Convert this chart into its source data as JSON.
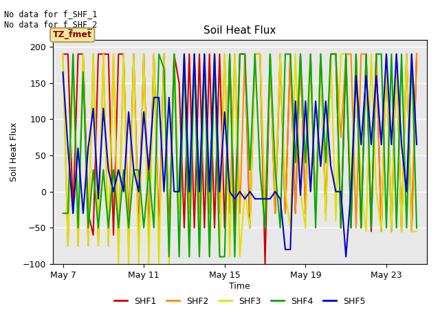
{
  "title": "Soil Heat Flux",
  "ylabel": "Soil Heat Flux",
  "xlabel": "Time",
  "ylim": [
    -100,
    210
  ],
  "annotation_text": "No data for f_SHF_1\nNo data for f_SHF_2",
  "legend_box_text": "TZ_fmet",
  "legend_box_color": "#f5e6a0",
  "legend_box_edge": "#b0a060",
  "bg_color": "#e8e8e8",
  "grid_color": "white",
  "xlim": [
    6.5,
    25.0
  ],
  "xtick_positions": [
    7,
    11,
    15,
    19,
    23
  ],
  "xtick_labels": [
    "May 7",
    "May 11",
    "May 15",
    "May 19",
    "May 23"
  ],
  "ytick_positions": [
    -100,
    -50,
    0,
    50,
    100,
    150,
    200
  ],
  "series_order": [
    "SHF1",
    "SHF2",
    "SHF3",
    "SHF4",
    "SHF5"
  ],
  "series": {
    "SHF1": {
      "color": "#cc0000",
      "x": [
        7.0,
        7.25,
        7.5,
        7.75,
        8.0,
        8.25,
        8.5,
        8.75,
        9.0,
        9.25,
        9.5,
        9.75,
        10.0,
        10.25,
        10.5,
        10.75,
        11.0,
        11.25,
        11.5,
        11.75,
        12.0,
        12.25,
        12.5,
        12.75,
        13.0,
        13.25,
        13.5,
        13.75,
        14.0,
        14.25,
        14.5,
        14.75,
        15.0,
        15.25,
        15.5,
        15.75,
        16.0,
        16.25,
        16.5,
        16.75,
        17.0,
        17.25,
        17.5,
        17.75,
        18.0,
        18.25,
        18.5,
        18.75,
        19.0,
        19.25,
        19.5,
        19.75,
        20.0,
        20.25,
        20.5,
        20.75,
        21.0,
        21.25,
        21.5,
        21.75,
        22.0,
        22.25,
        22.5,
        22.75,
        23.0,
        23.25,
        23.5,
        23.75,
        24.0,
        24.25,
        24.5
      ],
      "y": [
        190,
        190,
        -30,
        190,
        190,
        -30,
        -60,
        190,
        190,
        190,
        -60,
        190,
        190,
        -60,
        190,
        -60,
        190,
        -60,
        190,
        -60,
        190,
        -60,
        190,
        150,
        -50,
        190,
        -50,
        190,
        -50,
        190,
        -50,
        190,
        -50,
        190,
        -50,
        190,
        190,
        -50,
        190,
        190,
        -100,
        190,
        -30,
        190,
        -30,
        190,
        -30,
        190,
        -30,
        190,
        -30,
        190,
        -30,
        190,
        190,
        -50,
        190,
        -50,
        190,
        -50,
        190,
        -55,
        190,
        -55,
        190,
        -55,
        190,
        -55,
        190,
        -55,
        190
      ]
    },
    "SHF2": {
      "color": "#ff8c00",
      "x": [
        7.0,
        7.25,
        7.5,
        7.75,
        8.0,
        8.25,
        8.5,
        8.75,
        9.0,
        9.25,
        9.5,
        9.75,
        10.0,
        10.25,
        10.5,
        10.75,
        11.0,
        11.25,
        11.5,
        11.75,
        12.0,
        12.25,
        12.5,
        12.75,
        13.0,
        13.25,
        13.5,
        13.75,
        14.0,
        14.25,
        14.5,
        14.75,
        15.0,
        15.25,
        15.5,
        15.75,
        16.0,
        16.25,
        16.5,
        16.75,
        17.0,
        17.25,
        17.5,
        17.75,
        18.0,
        18.25,
        18.5,
        18.75,
        19.0,
        19.25,
        19.5,
        19.75,
        20.0,
        20.25,
        20.5,
        20.75,
        21.0,
        21.25,
        21.5,
        21.75,
        22.0,
        22.25,
        22.5,
        22.75,
        23.0,
        23.25,
        23.5,
        23.75,
        24.0,
        24.25,
        24.5
      ],
      "y": [
        190,
        -75,
        190,
        -75,
        190,
        -75,
        190,
        -75,
        190,
        -75,
        190,
        -75,
        190,
        -75,
        190,
        -75,
        190,
        -75,
        190,
        -75,
        190,
        -75,
        190,
        -30,
        190,
        -30,
        190,
        -30,
        190,
        -30,
        190,
        -30,
        190,
        -30,
        190,
        -30,
        190,
        -30,
        190,
        190,
        -30,
        190,
        -30,
        190,
        -30,
        190,
        -30,
        190,
        -30,
        190,
        -30,
        190,
        -30,
        190,
        190,
        75,
        190,
        190,
        -50,
        190,
        190,
        -50,
        190,
        -50,
        190,
        -50,
        190,
        -50,
        190,
        -50,
        190
      ]
    },
    "SHF3": {
      "color": "#e0e000",
      "x": [
        7.0,
        7.25,
        7.5,
        7.75,
        8.0,
        8.25,
        8.5,
        8.75,
        9.0,
        9.25,
        9.5,
        9.75,
        10.0,
        10.25,
        10.5,
        10.75,
        11.0,
        11.25,
        11.5,
        11.75,
        12.0,
        12.25,
        12.5,
        12.75,
        13.0,
        13.25,
        13.5,
        13.75,
        14.0,
        14.25,
        14.5,
        14.75,
        15.0,
        15.25,
        15.5,
        15.75,
        16.0,
        16.25,
        16.5,
        16.75,
        17.0,
        17.25,
        17.5,
        17.75,
        18.0,
        18.25,
        18.5,
        18.75,
        19.0,
        19.25,
        19.5,
        19.75,
        20.0,
        20.25,
        20.5,
        20.75,
        21.0,
        21.25,
        21.5,
        21.75,
        22.0,
        22.25,
        22.5,
        22.75,
        23.0,
        23.25,
        23.5,
        23.75,
        24.0,
        24.25,
        24.5
      ],
      "y": [
        190,
        -75,
        190,
        -75,
        190,
        -75,
        190,
        -75,
        190,
        -75,
        190,
        -100,
        190,
        -100,
        190,
        -100,
        190,
        -100,
        190,
        -100,
        190,
        -100,
        190,
        -30,
        190,
        -90,
        190,
        -90,
        190,
        -90,
        190,
        -90,
        190,
        -90,
        190,
        -90,
        0,
        -50,
        190,
        190,
        -50,
        190,
        0,
        190,
        0,
        -50,
        190,
        0,
        -50,
        190,
        -30,
        190,
        -40,
        190,
        -40,
        190,
        190,
        0,
        190,
        0,
        -55,
        190,
        0,
        -55,
        190,
        -55,
        190,
        -55,
        190,
        -55,
        -55
      ]
    },
    "SHF4": {
      "color": "#00aa00",
      "x": [
        7.0,
        7.25,
        7.5,
        7.75,
        8.0,
        8.25,
        8.5,
        8.75,
        9.0,
        9.25,
        9.5,
        9.75,
        10.0,
        10.25,
        10.5,
        10.75,
        11.0,
        11.25,
        11.5,
        11.75,
        12.0,
        12.25,
        12.5,
        12.75,
        13.0,
        13.25,
        13.5,
        13.75,
        14.0,
        14.25,
        14.5,
        14.75,
        15.0,
        15.25,
        15.5,
        15.75,
        16.0,
        16.25,
        16.5,
        16.75,
        17.0,
        17.25,
        17.5,
        17.75,
        18.0,
        18.25,
        18.5,
        18.75,
        19.0,
        19.25,
        19.5,
        19.75,
        20.0,
        20.25,
        20.5,
        20.75,
        21.0,
        21.25,
        21.5,
        21.75,
        22.0,
        22.25,
        22.5,
        22.75,
        23.0,
        23.25,
        23.5,
        23.75,
        24.0,
        24.25,
        24.5
      ],
      "y": [
        -30,
        -30,
        190,
        -50,
        165,
        -50,
        30,
        -50,
        30,
        -50,
        30,
        -50,
        30,
        -50,
        30,
        30,
        -50,
        30,
        -50,
        190,
        170,
        -90,
        190,
        -90,
        190,
        -90,
        190,
        -90,
        190,
        -90,
        190,
        -90,
        -90,
        190,
        -90,
        190,
        190,
        30,
        190,
        30,
        -50,
        190,
        30,
        -50,
        190,
        190,
        40,
        190,
        40,
        190,
        -50,
        190,
        40,
        190,
        190,
        -50,
        190,
        -50,
        190,
        -50,
        190,
        -50,
        190,
        190,
        -50,
        190,
        -50,
        190,
        -50,
        190,
        -50
      ]
    },
    "SHF5": {
      "color": "#0000cc",
      "x": [
        7.0,
        7.25,
        7.5,
        7.75,
        8.0,
        8.25,
        8.5,
        8.75,
        9.0,
        9.25,
        9.5,
        9.75,
        10.0,
        10.25,
        10.5,
        10.75,
        11.0,
        11.25,
        11.5,
        11.75,
        12.0,
        12.25,
        12.5,
        12.75,
        13.0,
        13.25,
        13.5,
        13.75,
        14.0,
        14.25,
        14.5,
        14.75,
        15.0,
        15.25,
        15.5,
        15.75,
        16.0,
        16.25,
        16.5,
        16.75,
        17.0,
        17.25,
        17.5,
        17.75,
        18.0,
        18.25,
        18.5,
        18.75,
        19.0,
        19.25,
        19.5,
        19.75,
        20.0,
        20.25,
        20.5,
        20.75,
        21.0,
        21.25,
        21.5,
        21.75,
        22.0,
        22.25,
        22.5,
        22.75,
        23.0,
        23.25,
        23.5,
        23.75,
        24.0,
        24.25,
        24.5
      ],
      "y": [
        165,
        60,
        -30,
        60,
        -30,
        60,
        115,
        -10,
        115,
        30,
        0,
        30,
        0,
        110,
        30,
        0,
        110,
        30,
        130,
        130,
        0,
        130,
        0,
        0,
        190,
        0,
        190,
        0,
        190,
        0,
        190,
        0,
        110,
        0,
        -10,
        0,
        -10,
        0,
        -10,
        -10,
        -10,
        -10,
        0,
        -10,
        -80,
        -80,
        125,
        -5,
        125,
        0,
        125,
        35,
        125,
        35,
        0,
        0,
        -90,
        0,
        160,
        65,
        160,
        65,
        160,
        65,
        190,
        65,
        190,
        65,
        0,
        190,
        65
      ]
    }
  },
  "legend_entries": [
    {
      "label": "SHF1",
      "color": "#cc0000"
    },
    {
      "label": "SHF2",
      "color": "#ff8c00"
    },
    {
      "label": "SHF3",
      "color": "#e0e000"
    },
    {
      "label": "SHF4",
      "color": "#00aa00"
    },
    {
      "label": "SHF5",
      "color": "#0000cc"
    }
  ]
}
